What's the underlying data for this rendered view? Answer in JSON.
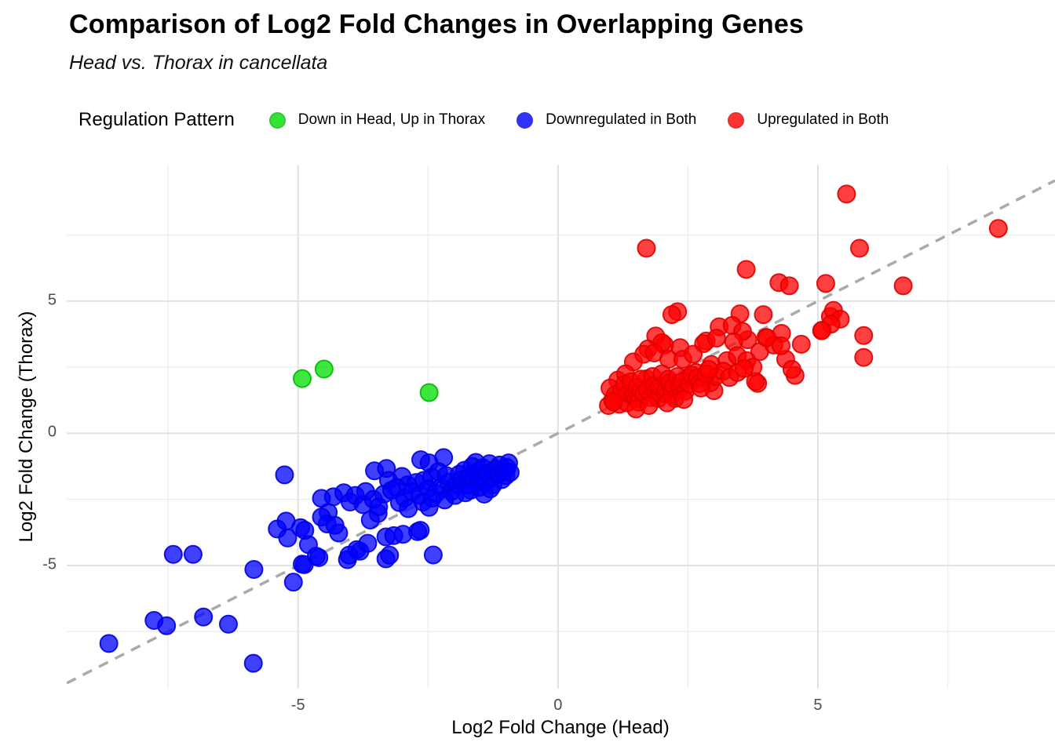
{
  "title": "Comparison of Log2 Fold Changes in Overlapping Genes",
  "subtitle": "Head vs. Thorax in cancellata",
  "legend": {
    "title": "Regulation Pattern",
    "items": [
      {
        "label": "Down in Head, Up in Thorax",
        "fill": "#00DD00",
        "stroke": "#00BB00"
      },
      {
        "label": "Downregulated in Both",
        "fill": "#0000FF",
        "stroke": "#0000E0"
      },
      {
        "label": "Upregulated in Both",
        "fill": "#FF0000",
        "stroke": "#E00000"
      }
    ]
  },
  "chart_data": {
    "type": "scatter",
    "title": "Comparison of Log2 Fold Changes in Overlapping Genes",
    "subtitle": "Head vs. Thorax in cancellata",
    "xlabel": "Log2 Fold Change (Head)",
    "ylabel": "Log2 Fold Change (Thorax)",
    "xlim": [
      -9.45,
      9.56
    ],
    "ylim": [
      -9.66,
      10.16
    ],
    "x_ticks": [
      -5,
      0,
      5
    ],
    "y_ticks": [
      -5,
      0,
      5
    ],
    "x_minor_ticks": [
      -7.5,
      -2.5,
      2.5,
      7.5
    ],
    "y_minor_ticks": [
      -7.5,
      -2.5,
      2.5,
      7.5
    ],
    "grid": {
      "major_color": "#E2E2E2",
      "minor_color": "#EFEFEF"
    },
    "reference_line": {
      "type": "identity y=x",
      "style": "dashed",
      "color": "#AAAAAA"
    },
    "marker": {
      "radius": 11,
      "fill_opacity": 0.75,
      "stroke_opacity": 0.9
    },
    "legend_position": "top",
    "series": [
      {
        "name": "Downregulated in Both",
        "fill": "#0000FF",
        "stroke": "#0000E0",
        "points": [
          [
            -8.64,
            -7.95
          ],
          [
            -7.77,
            -7.08
          ],
          [
            -7.53,
            -7.28
          ],
          [
            -6.82,
            -6.95
          ],
          [
            -6.34,
            -7.22
          ],
          [
            -5.86,
            -8.7
          ],
          [
            -7.4,
            -4.58
          ],
          [
            -7.02,
            -4.58
          ],
          [
            -5.85,
            -5.15
          ],
          [
            -5.09,
            -5.63
          ],
          [
            -4.88,
            -4.97
          ],
          [
            -4.6,
            -4.7
          ],
          [
            -4.05,
            -4.78
          ],
          [
            -3.87,
            -4.4
          ],
          [
            -2.4,
            -4.6
          ],
          [
            -5.26,
            -1.57
          ],
          [
            -4.92,
            -4.95
          ],
          [
            -5.4,
            -3.62
          ],
          [
            -5.23,
            -3.32
          ],
          [
            -5.2,
            -3.96
          ],
          [
            -4.95,
            -3.57
          ],
          [
            -4.87,
            -3.67
          ],
          [
            -4.8,
            -4.21
          ],
          [
            -4.65,
            -4.65
          ],
          [
            -4.42,
            -2.99
          ],
          [
            -4.44,
            -3.43
          ],
          [
            -4.22,
            -3.77
          ],
          [
            -4.02,
            -4.61
          ],
          [
            -3.81,
            -4.46
          ],
          [
            -3.66,
            -4.16
          ],
          [
            -3.31,
            -3.92
          ],
          [
            -3.16,
            -3.87
          ],
          [
            -2.98,
            -3.82
          ],
          [
            -3.31,
            -4.75
          ],
          [
            -3.24,
            -4.61
          ],
          [
            -2.7,
            -3.72
          ],
          [
            -2.65,
            -3.67
          ],
          [
            -3.61,
            -3.28
          ],
          [
            -3.46,
            -3.03
          ],
          [
            -4.29,
            -3.48
          ],
          [
            -4.55,
            -3.17
          ],
          [
            -4.55,
            -2.46
          ],
          [
            -4.32,
            -2.4
          ],
          [
            -4.12,
            -2.25
          ],
          [
            -4.0,
            -2.6
          ],
          [
            -3.9,
            -2.35
          ],
          [
            -3.75,
            -2.7
          ],
          [
            -3.7,
            -2.2
          ],
          [
            -3.55,
            -2.5
          ],
          [
            -3.45,
            -2.78
          ],
          [
            -3.35,
            -2.3
          ],
          [
            -3.53,
            -1.42
          ],
          [
            -3.3,
            -1.33
          ],
          [
            -3.26,
            -1.78
          ],
          [
            -3.0,
            -1.63
          ],
          [
            -2.89,
            -1.95
          ],
          [
            -2.73,
            -1.86
          ],
          [
            -2.58,
            -1.78
          ],
          [
            -2.43,
            -1.66
          ],
          [
            -2.64,
            -1.0
          ],
          [
            -2.2,
            -0.92
          ],
          [
            -2.95,
            -2.45
          ],
          [
            -2.8,
            -2.2
          ],
          [
            -2.65,
            -2.35
          ],
          [
            -2.5,
            -2.1
          ],
          [
            -2.35,
            -2.28
          ],
          [
            -2.48,
            -1.12
          ],
          [
            -3.1,
            -2.05
          ],
          [
            -3.05,
            -2.62
          ],
          [
            -2.88,
            -2.85
          ],
          [
            -2.6,
            -2.6
          ],
          [
            -2.42,
            -2.45
          ],
          [
            -2.25,
            -2.05
          ],
          [
            -2.1,
            -1.85
          ],
          [
            -2.3,
            -1.45
          ],
          [
            -2.15,
            -1.6
          ],
          [
            -2.05,
            -2.2
          ],
          [
            -1.95,
            -1.95
          ],
          [
            -3.2,
            -2.15
          ],
          [
            -2.48,
            -2.8
          ],
          [
            -1.9,
            -1.55
          ],
          [
            -1.85,
            -1.75
          ],
          [
            -1.8,
            -1.4
          ],
          [
            -1.75,
            -1.95
          ],
          [
            -1.7,
            -1.6
          ],
          [
            -1.65,
            -1.25
          ],
          [
            -1.62,
            -1.8
          ],
          [
            -1.55,
            -1.45
          ],
          [
            -1.52,
            -2.05
          ],
          [
            -1.48,
            -1.65
          ],
          [
            -1.45,
            -1.3
          ],
          [
            -1.4,
            -1.85
          ],
          [
            -1.35,
            -1.5
          ],
          [
            -1.32,
            -1.15
          ],
          [
            -1.28,
            -1.7
          ],
          [
            -1.25,
            -1.95
          ],
          [
            -1.2,
            -1.35
          ],
          [
            -1.15,
            -1.55
          ],
          [
            -1.12,
            -1.2
          ],
          [
            -1.08,
            -1.75
          ],
          [
            -1.05,
            -1.45
          ],
          [
            -1.0,
            -1.6
          ],
          [
            -0.98,
            -1.3
          ],
          [
            -0.95,
            -1.12
          ],
          [
            -0.92,
            -1.48
          ],
          [
            -1.58,
            -1.1
          ],
          [
            -1.68,
            -2.15
          ],
          [
            -1.78,
            -2.25
          ],
          [
            -1.98,
            -2.35
          ],
          [
            -2.18,
            -2.52
          ],
          [
            -1.42,
            -2.3
          ],
          [
            -1.3,
            -2.1
          ]
        ]
      },
      {
        "name": "Upregulated in Both",
        "fill": "#FF0000",
        "stroke": "#E00000",
        "points": [
          [
            5.55,
            9.05
          ],
          [
            8.47,
            7.75
          ],
          [
            1.7,
            7.0
          ],
          [
            5.8,
            7.0
          ],
          [
            3.62,
            6.2
          ],
          [
            4.25,
            5.7
          ],
          [
            4.45,
            5.58
          ],
          [
            5.15,
            5.67
          ],
          [
            6.64,
            5.58
          ],
          [
            2.3,
            4.6
          ],
          [
            3.5,
            4.52
          ],
          [
            3.95,
            4.49
          ],
          [
            5.24,
            4.42
          ],
          [
            5.3,
            4.65
          ],
          [
            5.43,
            4.32
          ],
          [
            5.25,
            4.13
          ],
          [
            2.19,
            4.49
          ],
          [
            1.88,
            3.68
          ],
          [
            3.1,
            4.03
          ],
          [
            3.35,
            4.08
          ],
          [
            3.65,
            3.54
          ],
          [
            2.85,
            3.49
          ],
          [
            4.0,
            3.63
          ],
          [
            4.3,
            3.78
          ],
          [
            5.07,
            3.88
          ],
          [
            5.88,
            3.7
          ],
          [
            3.55,
            3.85
          ],
          [
            5.08,
            3.9
          ],
          [
            1.73,
            3.19
          ],
          [
            2.05,
            3.34
          ],
          [
            2.35,
            3.24
          ],
          [
            2.8,
            3.39
          ],
          [
            3.88,
            3.09
          ],
          [
            4.15,
            3.34
          ],
          [
            4.38,
            2.8
          ],
          [
            5.88,
            2.87
          ],
          [
            4.02,
            3.61
          ],
          [
            3.38,
            3.46
          ],
          [
            3.05,
            3.6
          ],
          [
            2.0,
            3.43
          ],
          [
            4.68,
            3.37
          ],
          [
            4.29,
            3.31
          ],
          [
            3.84,
            1.89
          ],
          [
            4.56,
            2.19
          ],
          [
            4.5,
            2.42
          ],
          [
            3.8,
            1.96
          ],
          [
            3.0,
            1.61
          ],
          [
            1.45,
            2.7
          ],
          [
            1.65,
            2.99
          ],
          [
            1.85,
            3.04
          ],
          [
            2.13,
            2.8
          ],
          [
            2.4,
            2.8
          ],
          [
            2.6,
            2.99
          ],
          [
            2.95,
            2.6
          ],
          [
            3.25,
            2.75
          ],
          [
            3.45,
            2.94
          ],
          [
            3.63,
            2.75
          ],
          [
            3.75,
            2.5
          ],
          [
            1.15,
            2.01
          ],
          [
            1.3,
            2.25
          ],
          [
            1.7,
            2.06
          ],
          [
            2.5,
            2.11
          ],
          [
            2.65,
            2.3
          ],
          [
            2.93,
            1.91
          ],
          [
            3.03,
            2.15
          ],
          [
            3.18,
            2.35
          ],
          [
            3.3,
            2.11
          ],
          [
            3.45,
            2.3
          ],
          [
            3.58,
            2.45
          ],
          [
            0.97,
            1.05
          ],
          [
            1.0,
            1.71
          ],
          [
            1.05,
            1.25
          ],
          [
            1.1,
            1.45
          ],
          [
            1.18,
            1.1
          ],
          [
            1.22,
            1.6
          ],
          [
            1.28,
            1.85
          ],
          [
            1.33,
            1.15
          ],
          [
            1.35,
            1.51
          ],
          [
            1.4,
            1.95
          ],
          [
            1.45,
            1.42
          ],
          [
            1.5,
            1.32
          ],
          [
            1.52,
            1.75
          ],
          [
            1.55,
            1.18
          ],
          [
            1.6,
            1.61
          ],
          [
            1.6,
            2.05
          ],
          [
            1.65,
            1.5
          ],
          [
            1.72,
            1.65
          ],
          [
            1.78,
            1.35
          ],
          [
            1.82,
            2.15
          ],
          [
            1.85,
            1.81
          ],
          [
            1.88,
            1.55
          ],
          [
            1.93,
            1.32
          ],
          [
            1.95,
            1.75
          ],
          [
            2.0,
            2.25
          ],
          [
            2.05,
            1.51
          ],
          [
            2.08,
            1.65
          ],
          [
            2.12,
            2.05
          ],
          [
            2.15,
            1.91
          ],
          [
            2.18,
            1.45
          ],
          [
            2.22,
            1.78
          ],
          [
            2.25,
            1.32
          ],
          [
            2.3,
            2.15
          ],
          [
            2.35,
            1.71
          ],
          [
            2.38,
            1.95
          ],
          [
            2.45,
            1.6
          ],
          [
            2.52,
            1.85
          ],
          [
            2.58,
            2.2
          ],
          [
            2.68,
            2.1
          ],
          [
            2.72,
            1.88
          ],
          [
            2.75,
            1.71
          ],
          [
            2.85,
            2.25
          ],
          [
            2.9,
            2.42
          ],
          [
            1.5,
            0.92
          ],
          [
            1.75,
            1.05
          ],
          [
            2.1,
            1.15
          ],
          [
            2.42,
            1.28
          ],
          [
            1.07,
            1.18
          ]
        ]
      },
      {
        "name": "Down in Head, Up in Thorax",
        "fill": "#00DD00",
        "stroke": "#00BB00",
        "points": [
          [
            -4.92,
            2.07
          ],
          [
            -4.5,
            2.43
          ],
          [
            -2.48,
            1.54
          ]
        ]
      }
    ]
  }
}
